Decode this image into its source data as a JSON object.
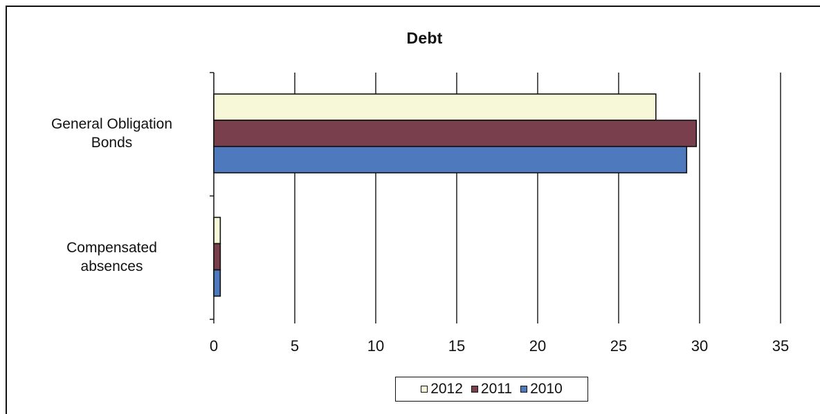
{
  "chart_data": {
    "type": "bar",
    "orientation": "horizontal",
    "title": "Debt",
    "categories": [
      "General Obligation\nBonds",
      "Compensated\nabsences"
    ],
    "series": [
      {
        "name": "2012",
        "values": [
          27.3,
          0.4
        ],
        "color": "#f6f8d8"
      },
      {
        "name": "2011",
        "values": [
          29.8,
          0.4
        ],
        "color": "#7a3f4c"
      },
      {
        "name": "2010",
        "values": [
          29.2,
          0.4
        ],
        "color": "#4f79bd"
      }
    ],
    "xlabel": "",
    "ylabel": "",
    "xlim": [
      0,
      35
    ],
    "xticks": [
      "0",
      "5",
      "10",
      "15",
      "20",
      "25",
      "30",
      "35"
    ],
    "grid": "vertical-major",
    "legend": "bottom-center"
  }
}
